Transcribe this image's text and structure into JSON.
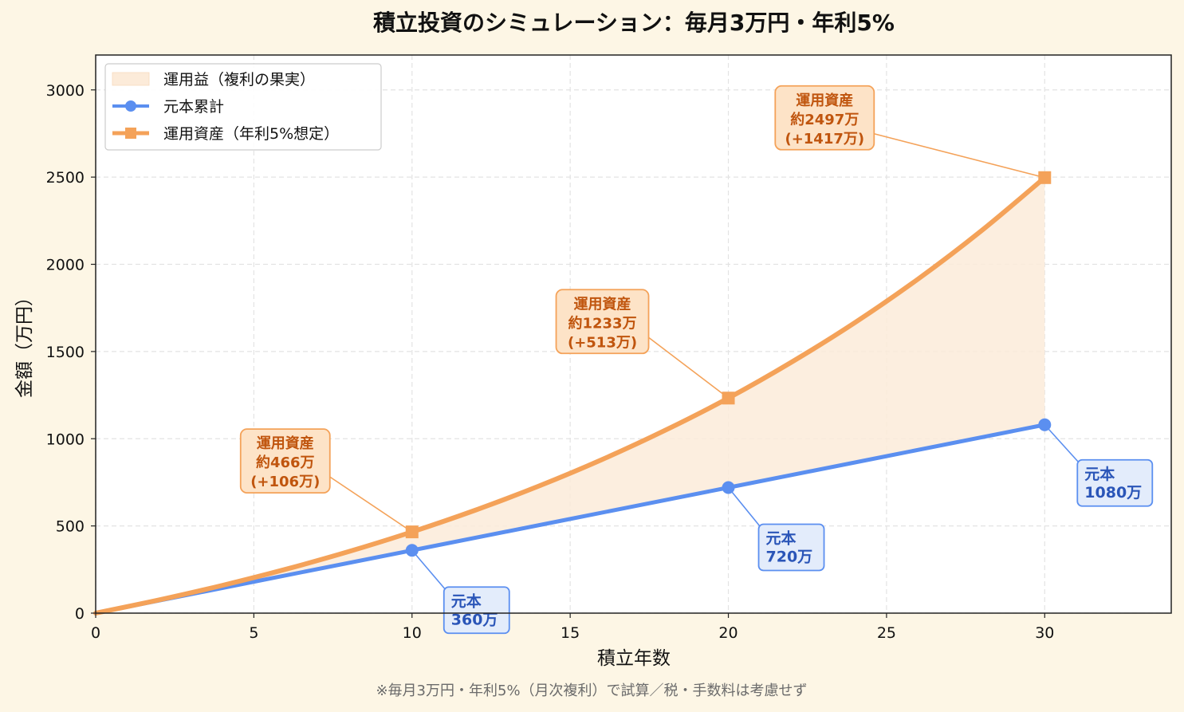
{
  "chart_data": {
    "type": "line",
    "title": "積立投資のシミュレーション：毎月3万円・年利5%",
    "xlabel": "積立年数",
    "ylabel": "金額（万円）",
    "xlim": [
      0,
      34
    ],
    "ylim": [
      0,
      3200
    ],
    "xticks": [
      0,
      5,
      10,
      15,
      20,
      25,
      30
    ],
    "yticks": [
      0,
      500,
      1000,
      1500,
      2000,
      2500,
      3000
    ],
    "grid": true,
    "legend_position": "top-left",
    "footnote": "※毎月3万円・年利5%（月次複利）で試算／税・手数料は考慮せず",
    "colors": {
      "principal": "#5b8ff0",
      "asset": "#f4a259",
      "fill": "#fcebd9",
      "orange_text": "#c0550e",
      "blue_text": "#2a55b8"
    },
    "legend": [
      {
        "key": "fill",
        "label": "運用益（複利の果実）"
      },
      {
        "key": "principal",
        "label": "元本累計"
      },
      {
        "key": "asset",
        "label": "運用資産（年利5%想定）"
      }
    ],
    "series": [
      {
        "name": "元本累計",
        "key": "principal",
        "marker": "circle",
        "x": [
          0,
          5,
          10,
          15,
          20,
          25,
          30
        ],
        "y": [
          0,
          180,
          360,
          540,
          720,
          900,
          1080
        ],
        "markers_at": [
          10,
          20,
          30
        ]
      },
      {
        "name": "運用資産（年利5%想定）",
        "key": "asset",
        "marker": "square",
        "x": [
          0,
          2,
          4,
          6,
          8,
          10,
          12,
          14,
          16,
          18,
          20,
          22,
          24,
          26,
          28,
          30
        ],
        "y": [
          0,
          75.5,
          158.9,
          251.1,
          353,
          465.8,
          590.3,
          727.9,
          880.0,
          1048.1,
          1233.0,
          1439.4,
          1665.8,
          1916.0,
          2192.6,
          2497.0
        ],
        "markers_at": [
          10,
          20,
          30
        ]
      }
    ],
    "annotations": {
      "asset": [
        {
          "x": 10,
          "line1": "運用資産",
          "line2": "約466万",
          "line3": "(+106万)"
        },
        {
          "x": 20,
          "line1": "運用資産",
          "line2": "約1233万",
          "line3": "(+513万)"
        },
        {
          "x": 30,
          "line1": "運用資産",
          "line2": "約2497万",
          "line3": "(+1417万)"
        }
      ],
      "principal": [
        {
          "x": 10,
          "line1": "元本",
          "line2": "360万"
        },
        {
          "x": 20,
          "line1": "元本",
          "line2": "720万"
        },
        {
          "x": 30,
          "line1": "元本",
          "line2": "1080万"
        }
      ]
    }
  }
}
